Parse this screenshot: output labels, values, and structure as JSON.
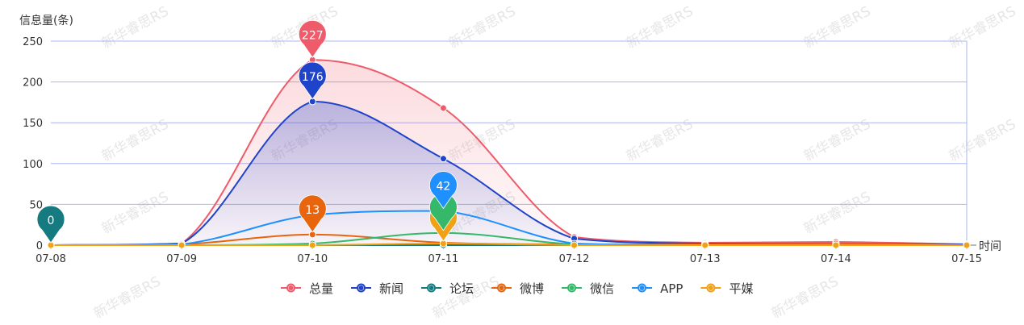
{
  "chart_data": {
    "type": "area",
    "ylabel": "信息量(条)",
    "xlabel": "时间",
    "ylim": [
      0,
      250
    ],
    "yticks": [
      0,
      50,
      100,
      150,
      200,
      250
    ],
    "categories": [
      "07-08",
      "07-09",
      "07-10",
      "07-11",
      "07-12",
      "07-13",
      "07-14",
      "07-15"
    ],
    "grid": true,
    "legend_position": "bottom",
    "series": [
      {
        "name": "总量",
        "color": "#ee5b6b",
        "fill": true,
        "values": [
          0,
          2,
          227,
          168,
          10,
          3,
          4,
          1
        ]
      },
      {
        "name": "新闻",
        "color": "#1f43c9",
        "fill": true,
        "values": [
          0,
          2,
          176,
          106,
          8,
          2,
          2,
          1
        ]
      },
      {
        "name": "论坛",
        "color": "#167b80",
        "fill": false,
        "values": [
          0,
          0,
          0,
          0,
          0,
          0,
          0,
          0
        ]
      },
      {
        "name": "微博",
        "color": "#e8650d",
        "fill": false,
        "values": [
          0,
          1,
          13,
          3,
          1,
          1,
          2,
          0
        ]
      },
      {
        "name": "微信",
        "color": "#35b86a",
        "fill": false,
        "values": [
          0,
          0,
          2,
          15,
          1,
          0,
          0,
          0
        ]
      },
      {
        "name": "APP",
        "color": "#1e90ff",
        "fill": false,
        "values": [
          0,
          1,
          37,
          42,
          2,
          0,
          0,
          0
        ]
      },
      {
        "name": "平媒",
        "color": "#f0a116",
        "fill": false,
        "values": [
          0,
          0,
          0,
          2,
          0,
          0,
          0,
          0
        ]
      }
    ],
    "annotations": [
      {
        "series": "总量",
        "category": "07-10",
        "label": "227"
      },
      {
        "series": "新闻",
        "category": "07-10",
        "label": "176"
      },
      {
        "series": "论坛",
        "category": "07-08",
        "label": "0"
      },
      {
        "series": "微博",
        "category": "07-10",
        "label": "13"
      },
      {
        "series": "微信",
        "category": "07-11",
        "label": ""
      },
      {
        "series": "APP",
        "category": "07-11",
        "label": "42"
      },
      {
        "series": "平媒",
        "category": "07-11",
        "label": "2"
      }
    ],
    "watermark": "新华睿思RS"
  }
}
